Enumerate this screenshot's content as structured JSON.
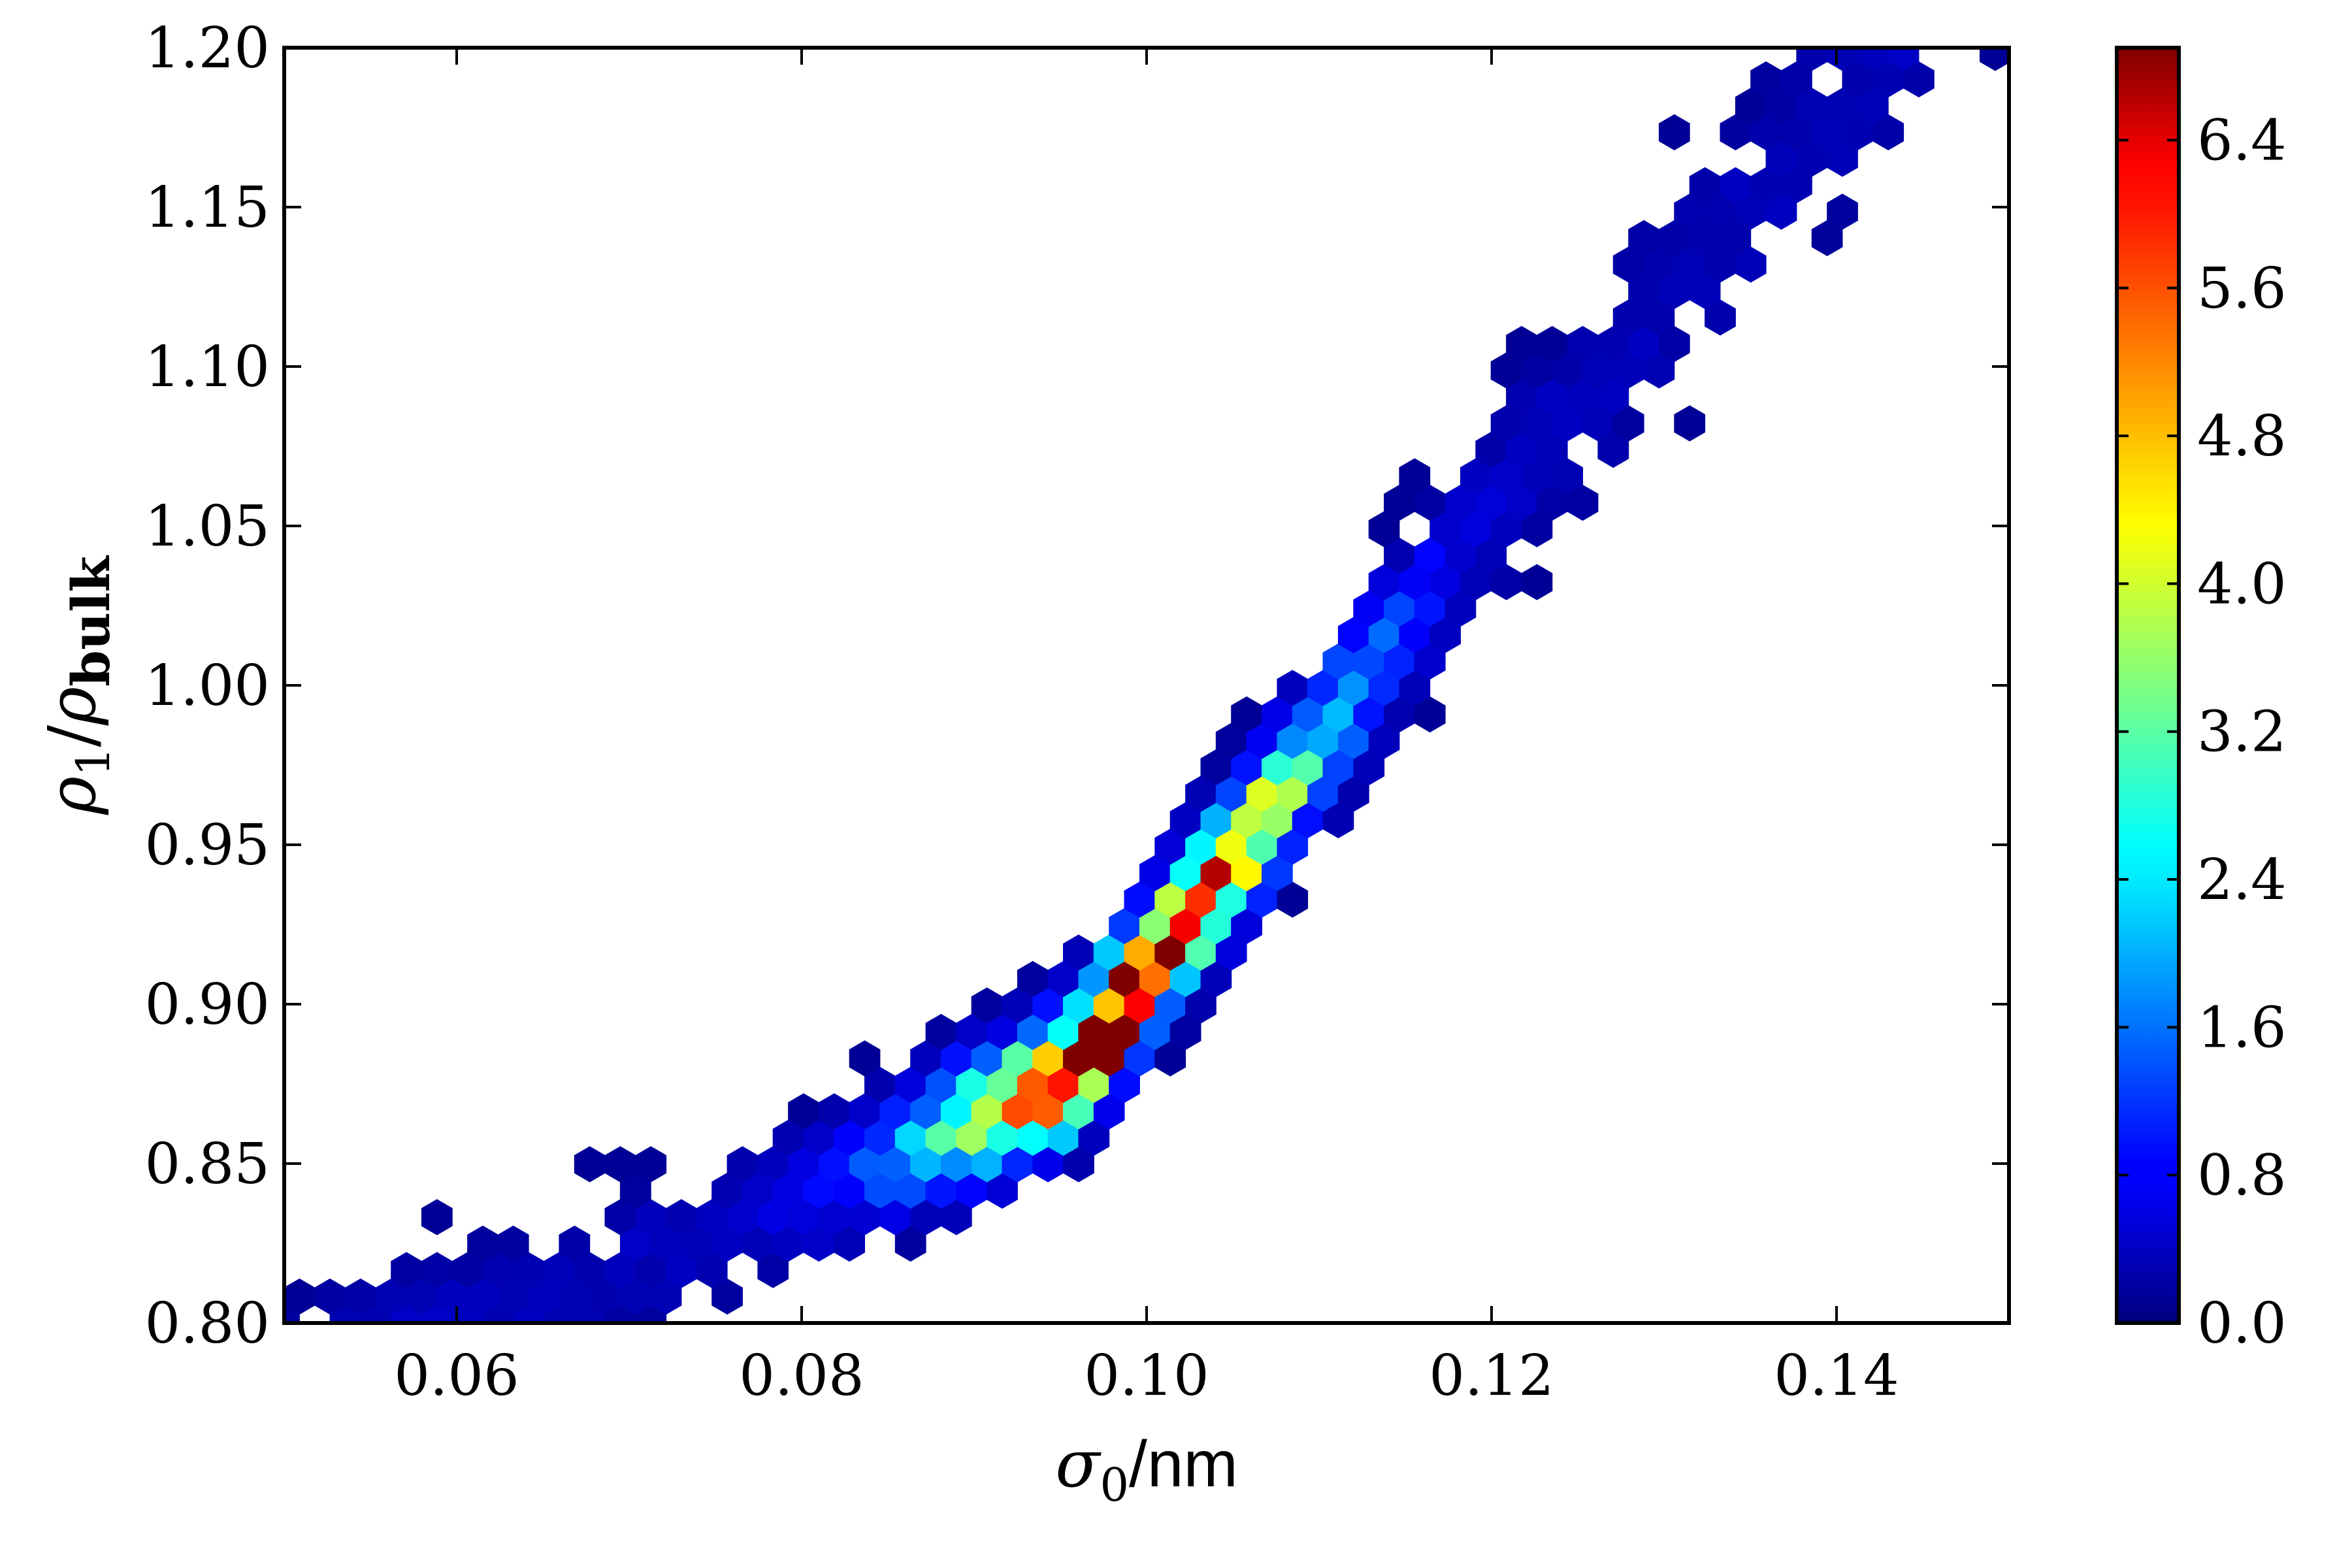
{
  "chart_data": {
    "type": "hexbin",
    "xlabel": {
      "var": "σ",
      "sub": "0",
      "unit": "/nm"
    },
    "ylabel": {
      "num": "ρ",
      "num_sub": "1",
      "slash": "/",
      "den": "ρ",
      "den_sub": "bulk"
    },
    "xlim": [
      0.05,
      0.15
    ],
    "ylim": [
      0.8,
      1.2
    ],
    "xticks": [
      "0.06",
      "0.08",
      "0.10",
      "0.12",
      "0.14"
    ],
    "xtick_values": [
      0.06,
      0.08,
      0.1,
      0.12,
      0.14
    ],
    "yticks": [
      "0.80",
      "0.85",
      "0.90",
      "0.95",
      "1.00",
      "1.05",
      "1.10",
      "1.15",
      "1.20"
    ],
    "ytick_values": [
      0.8,
      0.85,
      0.9,
      0.95,
      1.0,
      1.05,
      1.1,
      1.15,
      1.2
    ],
    "colorbar": {
      "colormap": "jet",
      "range": [
        0.0,
        6.9
      ],
      "ticks": [
        "0.0",
        "0.8",
        "1.6",
        "2.4",
        "3.2",
        "4.0",
        "4.8",
        "5.6",
        "6.4"
      ],
      "tick_values": [
        0.0,
        0.8,
        1.6,
        2.4,
        3.2,
        4.0,
        4.8,
        5.6,
        6.4
      ]
    },
    "distribution": {
      "description_values": {
        "ridge_y_at_x": [
          [
            0.06,
            0.8
          ],
          [
            0.08,
            0.84
          ],
          [
            0.095,
            0.876
          ],
          [
            0.105,
            0.945
          ],
          [
            0.12,
            1.055
          ],
          [
            0.135,
            1.15
          ]
        ],
        "peak": {
          "x": 0.0975,
          "y": 0.887,
          "value": 6.9
        }
      }
    }
  }
}
